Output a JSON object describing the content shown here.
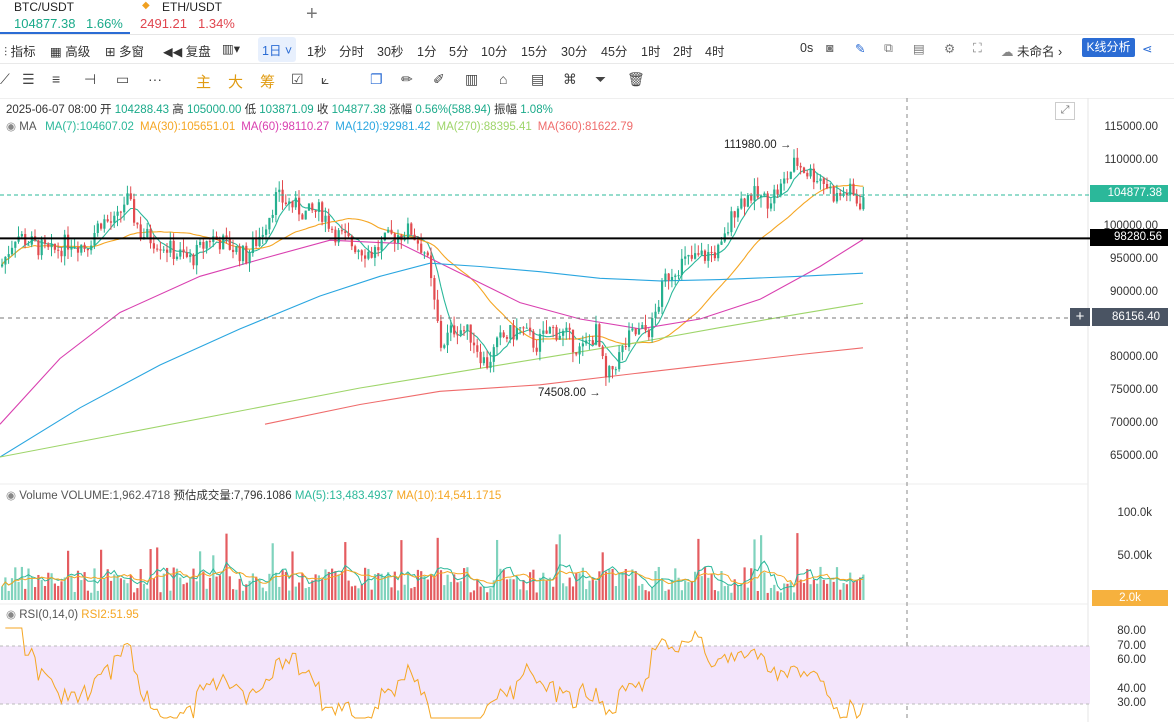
{
  "tabs": [
    {
      "symbol": "BTC/USDT",
      "price": "104877.38",
      "change": "1.66%",
      "price_color": "#1aaa8a"
    },
    {
      "symbol": "ETH/USDT",
      "price": "2491.21",
      "change": "1.34%",
      "price_color": "#e0454e"
    }
  ],
  "toolbar": {
    "indicators": "指标",
    "advanced": "高级",
    "multi_window": "多窗",
    "replay": "复盘",
    "interval_active": "1日",
    "intervals": [
      "1秒",
      "分时",
      "30秒",
      "1分",
      "5分",
      "10分",
      "15分",
      "30分",
      "45分",
      "1时",
      "2时",
      "4时"
    ],
    "timer": "0s",
    "layout_name": "未命名",
    "kline_button": "K线分析"
  },
  "drawing_tools": {
    "main": "主",
    "big": "大",
    "chip": "筹"
  },
  "ohlc": {
    "date": "2025-06-07 08:00",
    "open_label": "开",
    "open": "104288.43",
    "high_label": "高",
    "high": "105000.00",
    "low_label": "低",
    "low": "103871.09",
    "close_label": "收",
    "close": "104877.38",
    "change_label": "涨幅",
    "change": "0.56%(588.94)",
    "amp_label": "振幅",
    "amp": "1.08%"
  },
  "ma_legend": [
    {
      "text": "MA(7):104607.02",
      "color": "#2bb89a"
    },
    {
      "text": "MA(30):105651.01",
      "color": "#f5a623"
    },
    {
      "text": "MA(60):98110.27",
      "color": "#d940b0"
    },
    {
      "text": "MA(120):92981.42",
      "color": "#2aa6e0"
    },
    {
      "text": "MA(270):88395.41",
      "color": "#9ed56a"
    },
    {
      "text": "MA(360):81622.79",
      "color": "#ef6b6b"
    }
  ],
  "ma_label": "MA",
  "price_axis": [
    "115000.00",
    "110000.00",
    "100000.00",
    "95000.00",
    "90000.00",
    "80000.00",
    "75000.00",
    "70000.00",
    "65000.00"
  ],
  "price_tags": {
    "last": "104877.38",
    "last_color": "#2bb89a",
    "line": "98280.56",
    "cross": "86156.40",
    "high_marker": "111980.00",
    "low_marker": "74508.00"
  },
  "volume": {
    "label": "Volume",
    "vol_text": "VOLUME:1,962.4718",
    "est_text": "预估成交量:7,796.1086",
    "ma5": "MA(5):13,483.4937",
    "ma10": "MA(10):14,541.1715",
    "axis": [
      "100.0k",
      "50.00k"
    ],
    "tag": "2.0k"
  },
  "rsi": {
    "label": "RSI(0,14,0)",
    "value": "RSI2:51.95",
    "axis": [
      "80.00",
      "70.00",
      "60.00",
      "40.00",
      "30.00"
    ]
  },
  "colors": {
    "up": "#26b08f",
    "down": "#e24b4f",
    "accent": "#2b6cd4"
  }
}
